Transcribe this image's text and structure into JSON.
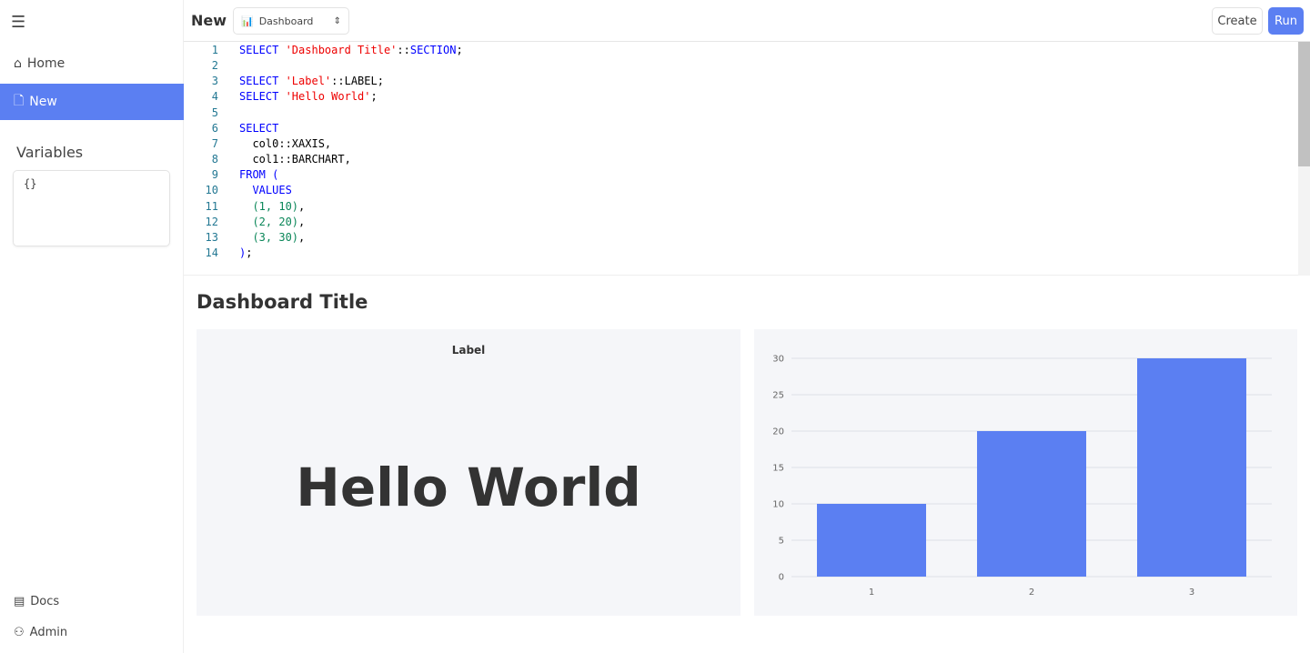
{
  "sidebar": {
    "home": "Home",
    "new": "New",
    "variables_title": "Variables",
    "variables_value": "{}",
    "docs": "Docs",
    "admin": "Admin"
  },
  "header": {
    "title": "New",
    "select_value": "Dashboard",
    "create": "Create",
    "run": "Run"
  },
  "editor": {
    "lines": [
      [
        [
          "kw",
          "SELECT "
        ],
        [
          "str",
          "'Dashboard Title'"
        ],
        [
          "pl",
          "::"
        ],
        [
          "kw",
          "SECTION"
        ],
        [
          "pl",
          ";"
        ]
      ],
      [],
      [
        [
          "kw",
          "SELECT "
        ],
        [
          "str",
          "'Label'"
        ],
        [
          "pl",
          "::LABEL;"
        ]
      ],
      [
        [
          "kw",
          "SELECT "
        ],
        [
          "str",
          "'Hello World'"
        ],
        [
          "pl",
          ";"
        ]
      ],
      [],
      [
        [
          "kw",
          "SELECT"
        ]
      ],
      [
        [
          "pl",
          "  col0::XAXIS,"
        ]
      ],
      [
        [
          "pl",
          "  col1::BARCHART,"
        ]
      ],
      [
        [
          "kw",
          "FROM ("
        ]
      ],
      [
        [
          "kw",
          "  VALUES"
        ]
      ],
      [
        [
          "num",
          "  (1, 10)"
        ],
        [
          "pl",
          ","
        ]
      ],
      [
        [
          "num",
          "  (2, 20)"
        ],
        [
          "pl",
          ","
        ]
      ],
      [
        [
          "num",
          "  (3, 30)"
        ],
        [
          "pl",
          ","
        ]
      ],
      [
        [
          "kw",
          ")"
        ],
        [
          "pl",
          ";"
        ]
      ]
    ]
  },
  "dashboard": {
    "title": "Dashboard Title",
    "label_title": "Label",
    "label_value": "Hello World"
  },
  "chart_data": {
    "type": "bar",
    "categories": [
      "1",
      "2",
      "3"
    ],
    "values": [
      10,
      20,
      30
    ],
    "ylim": [
      0,
      30
    ],
    "yticks": [
      0,
      5,
      10,
      15,
      20,
      25,
      30
    ],
    "grid": true,
    "color": "#5b7ff2"
  }
}
